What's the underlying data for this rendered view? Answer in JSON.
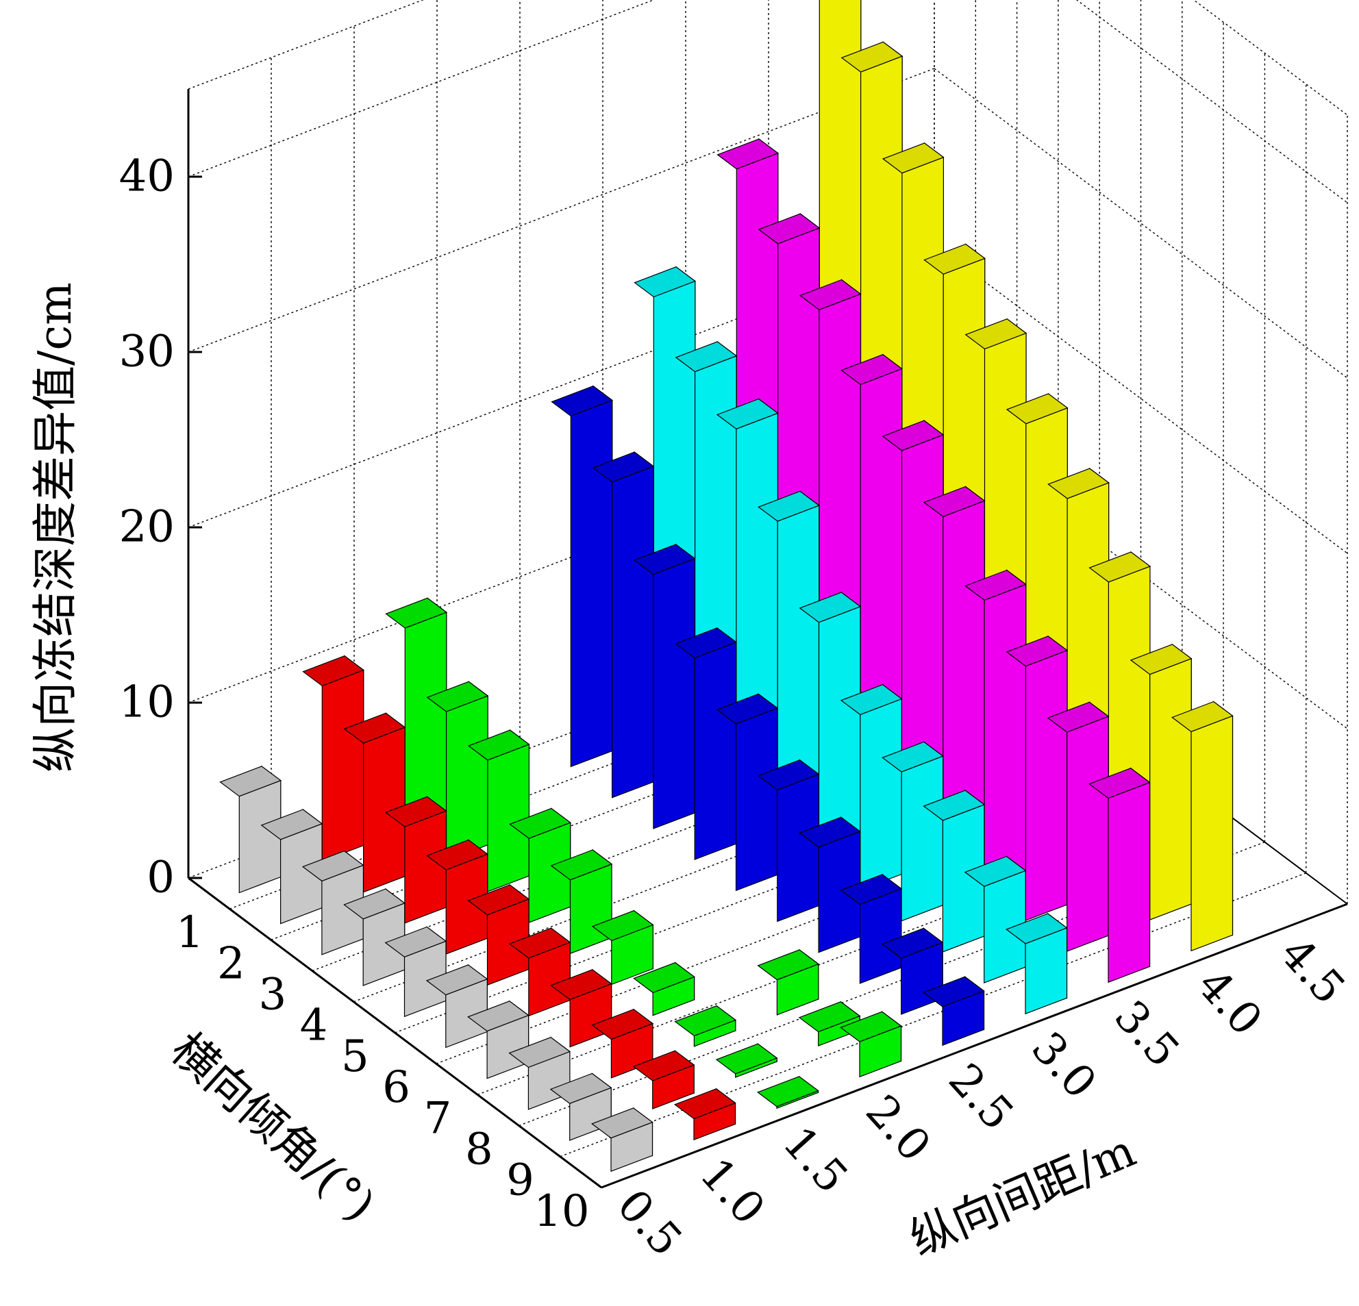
{
  "chart_data": {
    "type": "bar3d",
    "title": "",
    "xlabel": "横向倾角/(°)",
    "ylabel": "纵向间距/m",
    "zlabel": "纵向冻结深度差异值/cm",
    "x_ticks": [
      "1",
      "2",
      "3",
      "4",
      "5",
      "6",
      "7",
      "8",
      "9",
      "10"
    ],
    "y_ticks": [
      "0.5",
      "1.0",
      "1.5",
      "2.0",
      "2.5",
      "3.0",
      "3.5",
      "4.0",
      "4.5"
    ],
    "z_ticks": [
      "0",
      "10",
      "20",
      "30",
      "40"
    ],
    "zlim": [
      0,
      45
    ],
    "grid": true,
    "series": [
      {
        "spacing": "0.5",
        "color": "#c8c8c8",
        "values": [
          5.5,
          4.8,
          4.2,
          3.8,
          3.4,
          3.0,
          2.7,
          2.4,
          2.1,
          1.9
        ]
      },
      {
        "spacing": "1.0",
        "color": "#ee0000",
        "values": [
          10.0,
          8.5,
          5.5,
          4.8,
          4.0,
          3.3,
          2.7,
          2.2,
          1.6,
          1.2
        ]
      },
      {
        "spacing": "1.5",
        "color": "#00ee00",
        "values": [
          11.5,
          8.5,
          7.5,
          4.8,
          4.2,
          2.5,
          1.3,
          0.6,
          0.2,
          0.1
        ]
      },
      {
        "spacing": "2.0",
        "color": "#00ee00",
        "values": [
          0,
          0,
          0,
          0,
          0,
          0,
          0,
          2.0,
          0.8,
          2.0
        ]
      },
      {
        "spacing": "2.5",
        "color": "#0000dd",
        "values": [
          20.0,
          18.0,
          14.5,
          11.5,
          9.5,
          7.5,
          6.0,
          4.5,
          3.2,
          2.2
        ]
      },
      {
        "spacing": "3.0",
        "color": "#00eeee",
        "values": [
          25.0,
          22.5,
          21.0,
          17.5,
          13.5,
          10.0,
          8.5,
          7.5,
          5.5,
          4.0
        ]
      },
      {
        "spacing": "3.5",
        "color": "#ee00ee",
        "values": [
          30.5,
          28.0,
          26.0,
          23.5,
          21.5,
          19.5,
          16.5,
          14.5,
          12.5,
          10.5
        ]
      },
      {
        "spacing": "4.0",
        "color": "#eeee00",
        "values": [
          40.0,
          36.0,
          32.0,
          28.0,
          25.5,
          23.0,
          20.5,
          17.5,
          14.0,
          12.5
        ]
      }
    ]
  }
}
